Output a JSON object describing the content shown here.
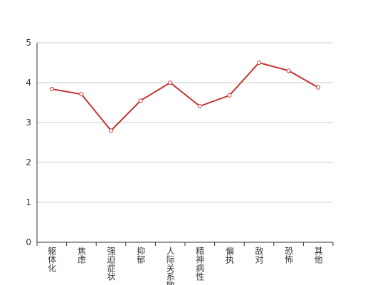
{
  "chart_data": {
    "type": "line",
    "categories": [
      "躯体化",
      "焦虑",
      "强迫症状",
      "抑郁",
      "人际关系敏感",
      "精神病性",
      "偏执",
      "敌对",
      "恐怖",
      "其他"
    ],
    "series": [
      {
        "color": "#c23531",
        "values": [
          3.84,
          3.71,
          2.8,
          3.55,
          4.0,
          3.41,
          3.68,
          4.5,
          4.3,
          3.88
        ]
      }
    ],
    "ylim": [
      0,
      5
    ],
    "yticks": [
      0,
      1,
      2,
      3,
      4,
      5
    ],
    "grid": true
  }
}
